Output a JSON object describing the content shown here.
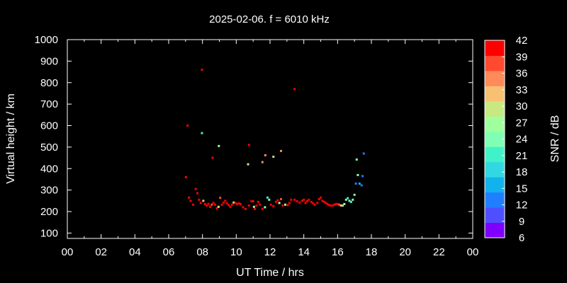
{
  "chart_data": {
    "type": "scatter",
    "title": "2025-02-06. f = 6010 kHz",
    "xlabel": "UT Time / hrs",
    "ylabel": "Virtual height / km",
    "colorbar_label": "SNR / dB",
    "xlim": [
      0,
      24
    ],
    "ylim": [
      75,
      1000
    ],
    "x_ticks": [
      "00",
      "02",
      "04",
      "06",
      "08",
      "10",
      "12",
      "14",
      "16",
      "18",
      "20",
      "22",
      "00"
    ],
    "y_ticks": [
      "100",
      "200",
      "300",
      "400",
      "500",
      "600",
      "700",
      "800",
      "900",
      "1000"
    ],
    "colorbar": {
      "min": 6,
      "max": 42,
      "ticks": [
        "6",
        "9",
        "12",
        "15",
        "18",
        "21",
        "24",
        "27",
        "30",
        "33",
        "36",
        "39",
        "42"
      ],
      "colors": [
        "#7f00ff",
        "#4f4fff",
        "#1f7fff",
        "#11b2ee",
        "#31d8e1",
        "#41f2c8",
        "#80ffb4",
        "#a0ff9c",
        "#c8e882",
        "#f8c072",
        "#ff8a5a",
        "#ff4a30",
        "#ff0000"
      ]
    },
    "points": [
      {
        "x": 7.02,
        "y": 360,
        "snr": 40
      },
      {
        "x": 7.12,
        "y": 600,
        "snr": 40
      },
      {
        "x": 7.97,
        "y": 860,
        "snr": 40
      },
      {
        "x": 13.45,
        "y": 770,
        "snr": 40
      },
      {
        "x": 7.97,
        "y": 565,
        "snr": 22
      },
      {
        "x": 8.6,
        "y": 450,
        "snr": 40
      },
      {
        "x": 8.97,
        "y": 505,
        "snr": 27
      },
      {
        "x": 10.75,
        "y": 510,
        "snr": 40
      },
      {
        "x": 10.7,
        "y": 420,
        "snr": 30
      },
      {
        "x": 11.55,
        "y": 430,
        "snr": 35
      },
      {
        "x": 11.72,
        "y": 462,
        "snr": 35
      },
      {
        "x": 12.2,
        "y": 455,
        "snr": 30
      },
      {
        "x": 12.65,
        "y": 482,
        "snr": 35
      },
      {
        "x": 17.13,
        "y": 442,
        "snr": 24
      },
      {
        "x": 17.55,
        "y": 470,
        "snr": 12
      },
      {
        "x": 17.2,
        "y": 370,
        "snr": 27
      },
      {
        "x": 17.48,
        "y": 365,
        "snr": 12
      },
      {
        "x": 17.08,
        "y": 330,
        "snr": 14
      },
      {
        "x": 17.3,
        "y": 330,
        "snr": 16
      },
      {
        "x": 17.42,
        "y": 322,
        "snr": 14
      },
      {
        "x": 7.2,
        "y": 265,
        "snr": 40
      },
      {
        "x": 7.3,
        "y": 250,
        "snr": 40
      },
      {
        "x": 7.45,
        "y": 232,
        "snr": 40
      },
      {
        "x": 7.6,
        "y": 305,
        "snr": 40
      },
      {
        "x": 7.7,
        "y": 285,
        "snr": 40
      },
      {
        "x": 7.8,
        "y": 255,
        "snr": 40
      },
      {
        "x": 7.9,
        "y": 240,
        "snr": 40
      },
      {
        "x": 8.05,
        "y": 250,
        "snr": 32
      },
      {
        "x": 8.15,
        "y": 235,
        "snr": 40
      },
      {
        "x": 8.25,
        "y": 228,
        "snr": 40
      },
      {
        "x": 8.35,
        "y": 236,
        "snr": 40
      },
      {
        "x": 8.45,
        "y": 222,
        "snr": 40
      },
      {
        "x": 8.55,
        "y": 232,
        "snr": 38
      },
      {
        "x": 8.65,
        "y": 240,
        "snr": 40
      },
      {
        "x": 8.75,
        "y": 232,
        "snr": 40
      },
      {
        "x": 8.85,
        "y": 215,
        "snr": 40
      },
      {
        "x": 8.95,
        "y": 222,
        "snr": 30
      },
      {
        "x": 9.05,
        "y": 264,
        "snr": 38
      },
      {
        "x": 9.15,
        "y": 232,
        "snr": 40
      },
      {
        "x": 9.25,
        "y": 242,
        "snr": 40
      },
      {
        "x": 9.35,
        "y": 250,
        "snr": 40
      },
      {
        "x": 9.45,
        "y": 238,
        "snr": 40
      },
      {
        "x": 9.55,
        "y": 230,
        "snr": 40
      },
      {
        "x": 9.65,
        "y": 222,
        "snr": 40
      },
      {
        "x": 9.75,
        "y": 232,
        "snr": 40
      },
      {
        "x": 9.85,
        "y": 242,
        "snr": 27
      },
      {
        "x": 9.95,
        "y": 240,
        "snr": 40
      },
      {
        "x": 10.05,
        "y": 235,
        "snr": 40
      },
      {
        "x": 10.15,
        "y": 238,
        "snr": 40
      },
      {
        "x": 10.25,
        "y": 235,
        "snr": 40
      },
      {
        "x": 10.4,
        "y": 220,
        "snr": 40
      },
      {
        "x": 10.55,
        "y": 212,
        "snr": 40
      },
      {
        "x": 10.75,
        "y": 228,
        "snr": 40
      },
      {
        "x": 10.9,
        "y": 248,
        "snr": 40
      },
      {
        "x": 11.0,
        "y": 248,
        "snr": 40
      },
      {
        "x": 11.05,
        "y": 222,
        "snr": 27
      },
      {
        "x": 11.1,
        "y": 212,
        "snr": 40
      },
      {
        "x": 11.2,
        "y": 228,
        "snr": 40
      },
      {
        "x": 11.3,
        "y": 245,
        "snr": 40
      },
      {
        "x": 11.4,
        "y": 232,
        "snr": 40
      },
      {
        "x": 11.55,
        "y": 212,
        "snr": 40
      },
      {
        "x": 11.7,
        "y": 220,
        "snr": 27
      },
      {
        "x": 11.85,
        "y": 265,
        "snr": 22
      },
      {
        "x": 11.95,
        "y": 255,
        "snr": 24
      },
      {
        "x": 12.05,
        "y": 232,
        "snr": 40
      },
      {
        "x": 12.2,
        "y": 225,
        "snr": 40
      },
      {
        "x": 12.35,
        "y": 245,
        "snr": 40
      },
      {
        "x": 12.45,
        "y": 252,
        "snr": 40
      },
      {
        "x": 12.55,
        "y": 240,
        "snr": 28
      },
      {
        "x": 12.65,
        "y": 258,
        "snr": 38
      },
      {
        "x": 12.75,
        "y": 228,
        "snr": 40
      },
      {
        "x": 12.9,
        "y": 232,
        "snr": 30
      },
      {
        "x": 13.05,
        "y": 230,
        "snr": 40
      },
      {
        "x": 13.15,
        "y": 240,
        "snr": 40
      },
      {
        "x": 13.25,
        "y": 255,
        "snr": 40
      },
      {
        "x": 13.45,
        "y": 255,
        "snr": 40
      },
      {
        "x": 13.6,
        "y": 248,
        "snr": 40
      },
      {
        "x": 13.75,
        "y": 242,
        "snr": 40
      },
      {
        "x": 13.9,
        "y": 250,
        "snr": 40
      },
      {
        "x": 14.0,
        "y": 255,
        "snr": 40
      },
      {
        "x": 14.1,
        "y": 240,
        "snr": 40
      },
      {
        "x": 14.2,
        "y": 248,
        "snr": 40
      },
      {
        "x": 14.3,
        "y": 255,
        "snr": 40
      },
      {
        "x": 14.45,
        "y": 245,
        "snr": 40
      },
      {
        "x": 14.55,
        "y": 238,
        "snr": 40
      },
      {
        "x": 14.65,
        "y": 232,
        "snr": 40
      },
      {
        "x": 14.8,
        "y": 240,
        "snr": 40
      },
      {
        "x": 14.9,
        "y": 258,
        "snr": 40
      },
      {
        "x": 15.0,
        "y": 265,
        "snr": 40
      },
      {
        "x": 15.1,
        "y": 250,
        "snr": 40
      },
      {
        "x": 15.2,
        "y": 245,
        "snr": 40
      },
      {
        "x": 15.3,
        "y": 240,
        "snr": 40
      },
      {
        "x": 15.4,
        "y": 235,
        "snr": 40
      },
      {
        "x": 15.5,
        "y": 230,
        "snr": 40
      },
      {
        "x": 15.6,
        "y": 228,
        "snr": 40
      },
      {
        "x": 15.7,
        "y": 228,
        "snr": 40
      },
      {
        "x": 15.8,
        "y": 232,
        "snr": 40
      },
      {
        "x": 15.9,
        "y": 235,
        "snr": 40
      },
      {
        "x": 16.0,
        "y": 235,
        "snr": 40
      },
      {
        "x": 16.1,
        "y": 232,
        "snr": 38
      },
      {
        "x": 16.2,
        "y": 228,
        "snr": 32
      },
      {
        "x": 16.3,
        "y": 228,
        "snr": 30
      },
      {
        "x": 16.4,
        "y": 235,
        "snr": 28
      },
      {
        "x": 16.5,
        "y": 255,
        "snr": 24
      },
      {
        "x": 16.6,
        "y": 262,
        "snr": 22
      },
      {
        "x": 16.7,
        "y": 250,
        "snr": 24
      },
      {
        "x": 16.8,
        "y": 245,
        "snr": 22
      },
      {
        "x": 16.9,
        "y": 255,
        "snr": 24
      },
      {
        "x": 17.0,
        "y": 278,
        "snr": 24
      }
    ]
  }
}
